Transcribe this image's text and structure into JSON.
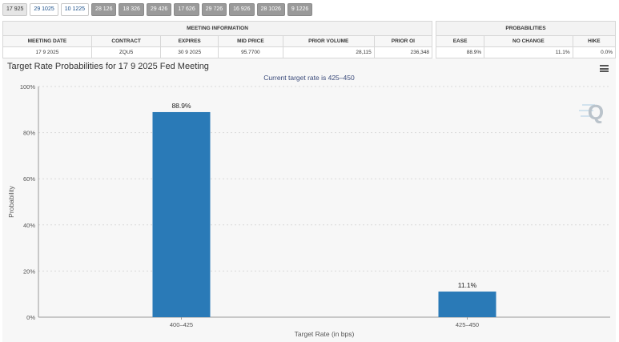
{
  "tabs": [
    {
      "label": "17 925",
      "style": "active"
    },
    {
      "label": "29 1025",
      "style": "linked"
    },
    {
      "label": "10 1225",
      "style": "linked"
    },
    {
      "label": "28 126",
      "style": "dark"
    },
    {
      "label": "18 326",
      "style": "dark"
    },
    {
      "label": "29 426",
      "style": "dark"
    },
    {
      "label": "17 626",
      "style": "dark"
    },
    {
      "label": "29 726",
      "style": "dark"
    },
    {
      "label": "16 926",
      "style": "dark"
    },
    {
      "label": "28 1026",
      "style": "dark"
    },
    {
      "label": "9 1226",
      "style": "dark"
    }
  ],
  "meeting_info": {
    "title": "MEETING INFORMATION",
    "headers": [
      "MEETING DATE",
      "CONTRACT",
      "EXPIRES",
      "MID PRICE",
      "PRIOR VOLUME",
      "PRIOR OI"
    ],
    "row": [
      "17 9 2025",
      "ZQU5",
      "30 9 2025",
      "95.7700",
      "28,115",
      "236,348"
    ]
  },
  "probabilities": {
    "title": "PROBABILITIES",
    "headers": [
      "EASE",
      "NO CHANGE",
      "HIKE"
    ],
    "row": [
      "88.9%",
      "11.1%",
      "0.0%"
    ]
  },
  "chart_title": "Target Rate Probabilities for 17 9 2025 Fed Meeting",
  "colors": {
    "bar": "#2a7ab7",
    "grid": "#d9d9d9",
    "background": "#f7f7f7"
  },
  "chart_data": {
    "type": "bar",
    "subtitle": "Current target rate is 425–450",
    "categories": [
      "400–425",
      "425–450"
    ],
    "values": [
      88.9,
      11.1
    ],
    "data_labels": [
      "88.9%",
      "11.1%"
    ],
    "xlabel": "Target Rate (in bps)",
    "ylabel": "Probability",
    "ylim": [
      0,
      100
    ],
    "yticks": [
      0,
      20,
      40,
      60,
      80,
      100
    ],
    "ytick_labels": [
      "0%",
      "20%",
      "40%",
      "60%",
      "80%",
      "100%"
    ],
    "grid": true,
    "legend": "none"
  }
}
